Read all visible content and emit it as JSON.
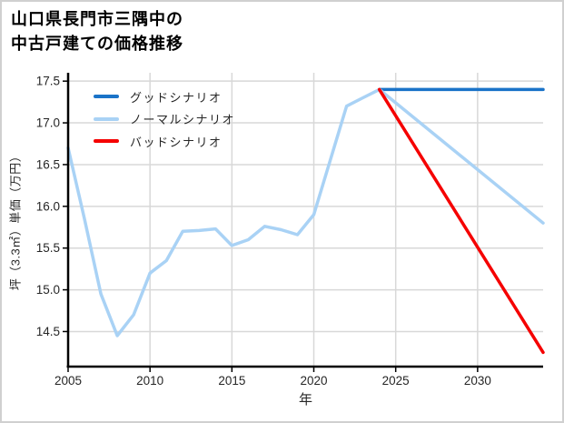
{
  "window": {
    "background": "#ffffff",
    "border_color": "#d0d0d0"
  },
  "title": {
    "lines": [
      "山口県長門市三隅中の",
      "中古戸建ての価格推移"
    ]
  },
  "colors": {
    "grid": "#d8d8d8",
    "spine": "#000000",
    "tick_label": "#262626",
    "title": "#000000",
    "good": "#1a73c8",
    "normal": "#a9d2f5",
    "bad": "#f50000"
  },
  "chart_data": {
    "type": "line",
    "title": "山口県長門市三隅中の中古戸建ての価格推移",
    "xlabel": "年",
    "ylabel": "坪（3.3㎡）単価（万円）",
    "xlim": [
      2005,
      2034
    ],
    "ylim": [
      14.08,
      17.6
    ],
    "xticks": [
      2005,
      2010,
      2015,
      2020,
      2025,
      2030
    ],
    "yticks": [
      14.5,
      15.0,
      15.5,
      16.0,
      16.5,
      17.0,
      17.5
    ],
    "grid": true,
    "legend_position": "upper-left",
    "series": [
      {
        "name": "グッドシナリオ",
        "color": "#1a73c8",
        "points": [
          [
            2024,
            17.4
          ],
          [
            2034,
            17.4
          ]
        ]
      },
      {
        "name": "ノーマルシナリオ",
        "color": "#a9d2f5",
        "points": [
          [
            2005,
            16.7
          ],
          [
            2006,
            15.85
          ],
          [
            2007,
            14.95
          ],
          [
            2008,
            14.45
          ],
          [
            2009,
            14.7
          ],
          [
            2010,
            15.2
          ],
          [
            2011,
            15.35
          ],
          [
            2012,
            15.7
          ],
          [
            2013,
            15.71
          ],
          [
            2014,
            15.73
          ],
          [
            2015,
            15.53
          ],
          [
            2016,
            15.6
          ],
          [
            2017,
            15.76
          ],
          [
            2018,
            15.72
          ],
          [
            2019,
            15.66
          ],
          [
            2020,
            15.9
          ],
          [
            2021,
            16.55
          ],
          [
            2022,
            17.2
          ],
          [
            2023,
            17.3
          ],
          [
            2024,
            17.4
          ],
          [
            2034,
            15.8
          ]
        ]
      },
      {
        "name": "バッドシナリオ",
        "color": "#f50000",
        "points": [
          [
            2024,
            17.4
          ],
          [
            2034,
            14.25
          ]
        ]
      }
    ]
  }
}
